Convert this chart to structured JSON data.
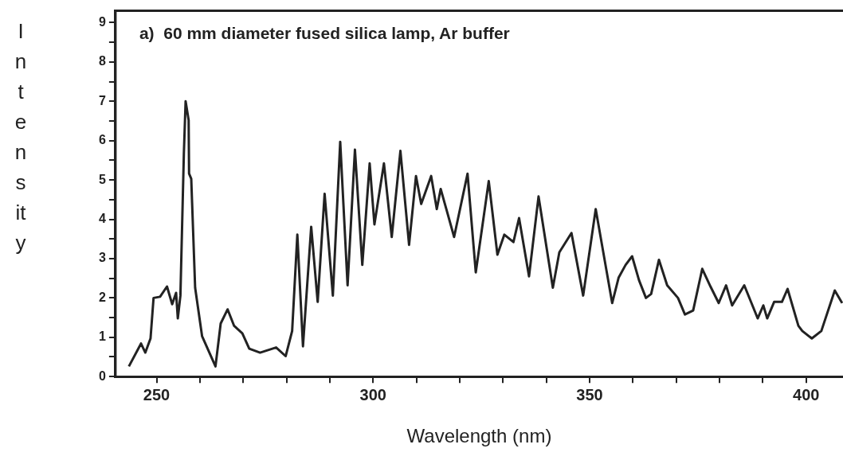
{
  "chart_data": {
    "type": "line",
    "xlabel": "Wavelength (nm)",
    "ylabel": "Intensity",
    "annotations": [
      "a)  60 mm diameter fused silica lamp, Ar buffer"
    ],
    "xlim": [
      240.5,
      408.5
    ],
    "ylim": [
      0,
      9.3
    ],
    "xticks": [
      250,
      {
        "value": 260,
        "label": null
      },
      {
        "value": 270,
        "label": null
      },
      {
        "value": 280,
        "label": null
      },
      {
        "value": 290,
        "label": null
      },
      300,
      {
        "value": 310,
        "label": null
      },
      {
        "value": 320,
        "label": null
      },
      {
        "value": 330,
        "label": null
      },
      {
        "value": 340,
        "label": null
      },
      350,
      {
        "value": 360,
        "label": null
      },
      {
        "value": 370,
        "label": null
      },
      {
        "value": 380,
        "label": null
      },
      {
        "value": 390,
        "label": null
      },
      400
    ],
    "yticks": [
      0,
      {
        "value": 0.5,
        "label": null
      },
      1,
      {
        "value": 1.5,
        "label": null
      },
      2,
      {
        "value": 2.5,
        "label": null
      },
      3,
      {
        "value": 3.5,
        "label": null
      },
      4,
      {
        "value": 4.5,
        "label": null
      },
      5,
      {
        "value": 5.5,
        "label": null
      },
      6,
      {
        "value": 6.5,
        "label": null
      },
      7,
      {
        "value": 7.5,
        "label": null
      },
      8,
      {
        "value": 8.5,
        "label": null
      },
      9
    ],
    "grid": false,
    "legend": false,
    "marker": "none",
    "line_style": "solid",
    "series": [
      {
        "color": "#222222",
        "x": [
          243.6,
          246.4,
          247.4,
          248.6,
          249.3,
          250.8,
          252.4,
          253.6,
          254.5,
          254.9,
          255.5,
          256.3,
          256.7,
          257.4,
          257.5,
          258.0,
          258.9,
          260.5,
          263.6,
          264.8,
          266.4,
          267.9,
          269.8,
          271.4,
          273.9,
          277.6,
          279.8,
          281.3,
          282.5,
          283.8,
          285.7,
          287.2,
          288.8,
          290.7,
          292.4,
          294.1,
          295.8,
          297.5,
          299.2,
          300.3,
          302.5,
          304.3,
          306.3,
          308.3,
          309.9,
          311.1,
          313.4,
          314.7,
          315.6,
          316.9,
          318.7,
          321.8,
          323.7,
          326.7,
          328.7,
          330.3,
          332.4,
          333.7,
          336.0,
          338.2,
          341.5,
          343.0,
          345.8,
          348.5,
          351.4,
          355.2,
          356.7,
          358.3,
          359.8,
          361.4,
          363.0,
          364.2,
          366.0,
          367.9,
          370.4,
          372.0,
          373.9,
          376.0,
          377.9,
          379.8,
          381.5,
          382.9,
          385.7,
          388.8,
          390.1,
          391.0,
          392.6,
          394.4,
          395.7,
          398.2,
          399.1,
          401.3,
          403.5,
          406.6,
          408.3
        ],
        "values": [
          0.26,
          0.84,
          0.61,
          0.97,
          2.0,
          2.03,
          2.29,
          1.84,
          2.13,
          1.48,
          2.06,
          5.68,
          7.0,
          6.52,
          5.16,
          5.03,
          2.26,
          1.03,
          0.26,
          1.35,
          1.71,
          1.29,
          1.1,
          0.71,
          0.61,
          0.74,
          0.52,
          1.16,
          3.61,
          0.77,
          3.81,
          1.9,
          4.65,
          2.06,
          5.97,
          2.32,
          5.77,
          2.84,
          5.42,
          3.87,
          5.42,
          3.55,
          5.74,
          3.35,
          5.1,
          4.39,
          5.1,
          4.26,
          4.77,
          4.26,
          3.55,
          5.16,
          2.65,
          4.97,
          3.1,
          3.61,
          3.42,
          4.03,
          2.55,
          4.58,
          2.26,
          3.16,
          3.65,
          2.06,
          4.26,
          1.87,
          2.52,
          2.84,
          3.06,
          2.45,
          2.0,
          2.1,
          2.97,
          2.32,
          2.0,
          1.58,
          1.68,
          2.74,
          2.29,
          1.87,
          2.32,
          1.81,
          2.32,
          1.48,
          1.81,
          1.48,
          1.9,
          1.9,
          2.23,
          1.29,
          1.16,
          0.97,
          1.16,
          2.19,
          1.87
        ]
      }
    ]
  }
}
